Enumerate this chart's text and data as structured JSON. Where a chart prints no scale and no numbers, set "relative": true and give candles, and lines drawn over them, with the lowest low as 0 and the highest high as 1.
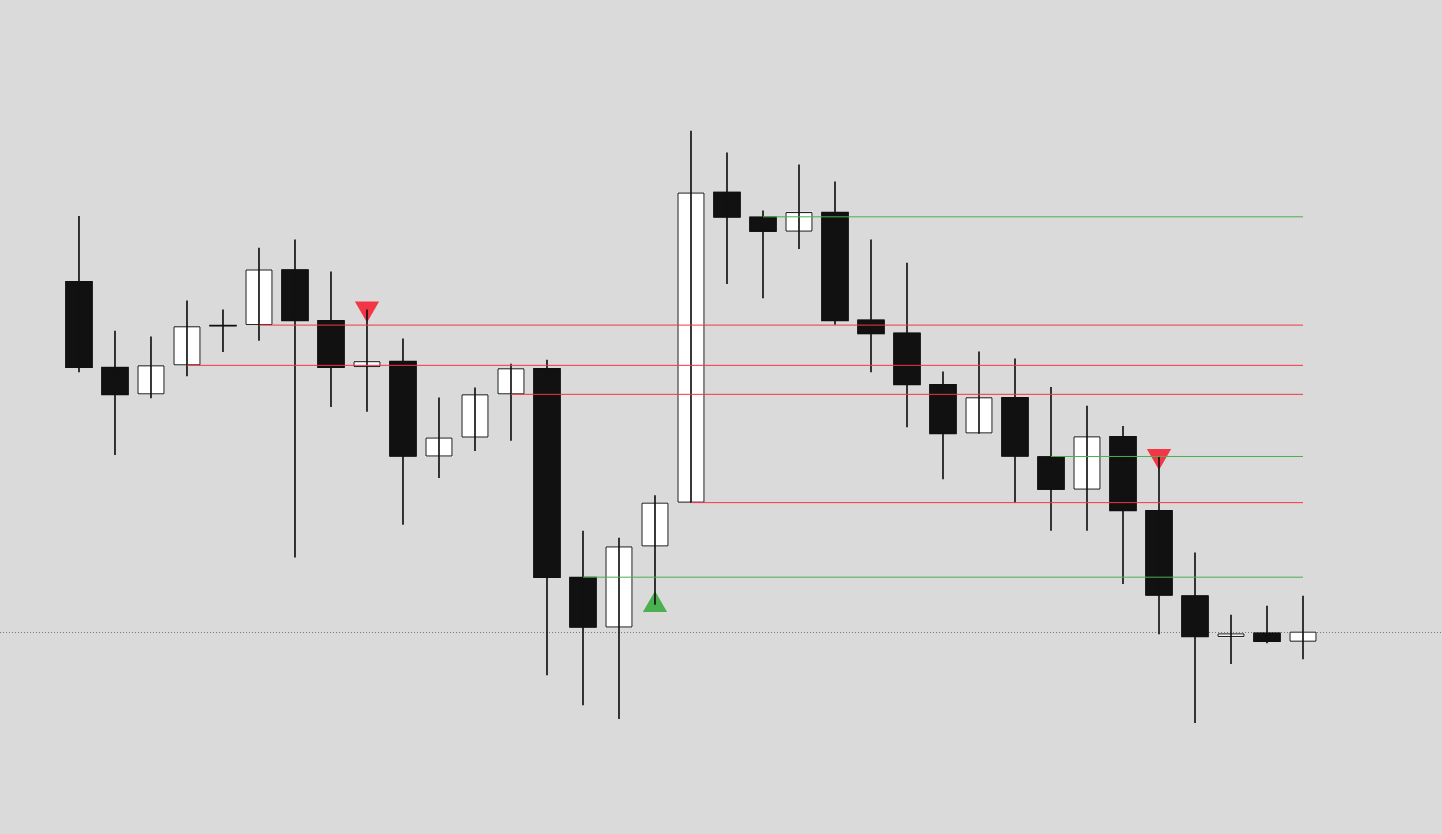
{
  "chart_data": {
    "type": "candlestick",
    "relative": true,
    "tick_labels": false,
    "color": "#111111",
    "categories": [
      null,
      null,
      null,
      null,
      null,
      null,
      null,
      null,
      null,
      null,
      null,
      null,
      null,
      null,
      null,
      null,
      null,
      null,
      null,
      null,
      null,
      null,
      null,
      null,
      null,
      null,
      null,
      null,
      null,
      null,
      null,
      null,
      null,
      null,
      null
    ],
    "ohlc": [
      [
        0.746,
        0.856,
        0.593,
        0.6
      ],
      [
        0.601,
        0.662,
        0.453,
        0.554
      ],
      [
        0.555,
        0.652,
        0.549,
        0.604
      ],
      [
        0.604,
        0.713,
        0.586,
        0.67
      ],
      [
        0.672,
        0.698,
        0.627,
        0.672
      ],
      [
        0.672,
        0.802,
        0.646,
        0.766
      ],
      [
        0.766,
        0.816,
        0.28,
        0.679
      ],
      [
        0.68,
        0.762,
        0.534,
        0.6
      ],
      [
        0.601,
        0.698,
        0.526,
        0.611
      ],
      [
        0.611,
        0.649,
        0.335,
        0.45
      ],
      [
        0.45,
        0.549,
        0.414,
        0.482
      ],
      [
        0.482,
        0.566,
        0.46,
        0.555
      ],
      [
        0.555,
        0.606,
        0.477,
        0.599
      ],
      [
        0.599,
        0.613,
        0.081,
        0.245
      ],
      [
        0.246,
        0.324,
        0.03,
        0.161
      ],
      [
        0.161,
        0.312,
        0.007,
        0.298
      ],
      [
        0.298,
        0.384,
        0.2,
        0.372
      ],
      [
        0.372,
        1.0,
        0.372,
        0.896
      ],
      [
        0.897,
        0.963,
        0.742,
        0.854
      ],
      [
        0.855,
        0.865,
        0.718,
        0.83
      ],
      [
        0.83,
        0.943,
        0.801,
        0.863
      ],
      [
        0.863,
        0.914,
        0.673,
        0.679
      ],
      [
        0.681,
        0.816,
        0.593,
        0.657
      ],
      [
        0.659,
        0.777,
        0.5,
        0.571
      ],
      [
        0.572,
        0.593,
        0.412,
        0.488
      ],
      [
        0.489,
        0.627,
        0.489,
        0.55
      ],
      [
        0.55,
        0.615,
        0.372,
        0.45
      ],
      [
        0.45,
        0.567,
        0.325,
        0.394
      ],
      [
        0.394,
        0.535,
        0.325,
        0.484
      ],
      [
        0.484,
        0.501,
        0.235,
        0.358
      ],
      [
        0.359,
        0.449,
        0.15,
        0.215
      ],
      [
        0.215,
        0.287,
        0.0,
        0.145
      ],
      [
        0.145,
        0.182,
        0.1,
        0.151
      ],
      [
        0.152,
        0.197,
        0.135,
        0.137
      ],
      [
        0.137,
        0.214,
        0.108,
        0.154
      ]
    ],
    "colors": [
      "#111111",
      "#111111",
      "#ffffff",
      "#ffffff",
      "#111111",
      "#ffffff",
      "#111111",
      "#111111",
      "#ffffff",
      "#111111",
      "#ffffff",
      "#ffffff",
      "#ffffff",
      "#111111",
      "#111111",
      "#ffffff",
      "#ffffff",
      "#ffffff",
      "#111111",
      "#111111",
      "#ffffff",
      "#111111",
      "#111111",
      "#111111",
      "#111111",
      "#ffffff",
      "#111111",
      "#111111",
      "#ffffff",
      "#111111",
      "#111111",
      "#111111",
      "#ffffff",
      "#111111",
      "#ffffff"
    ],
    "series": [
      {
        "type": "line",
        "color": "#4caf50",
        "values": [
          null,
          null,
          null,
          null,
          null,
          null,
          null,
          null,
          null,
          null,
          null,
          null,
          null,
          null,
          null,
          null,
          null,
          null,
          null,
          0.855,
          0.855,
          0.855,
          0.855,
          0.855,
          0.855,
          0.855,
          0.855,
          0.855,
          0.855,
          0.855,
          0.855,
          0.855,
          0.855,
          0.855,
          0.855
        ]
      },
      {
        "type": "line",
        "color": "#f23645",
        "values": [
          null,
          null,
          null,
          null,
          null,
          0.672,
          0.672,
          0.672,
          0.672,
          0.672,
          0.672,
          0.672,
          0.672,
          0.672,
          0.672,
          0.672,
          0.672,
          0.672,
          0.672,
          0.672,
          0.672,
          0.672,
          0.672,
          0.672,
          0.672,
          0.672,
          0.672,
          0.672,
          0.672,
          0.672,
          0.672,
          0.672,
          0.672,
          0.672,
          0.672
        ]
      },
      {
        "type": "line",
        "color": "#f23645",
        "values": [
          null,
          null,
          null,
          0.604,
          0.604,
          0.604,
          0.604,
          0.604,
          0.604,
          0.604,
          0.604,
          0.604,
          0.604,
          0.604,
          0.604,
          0.604,
          0.604,
          0.604,
          0.604,
          0.604,
          0.604,
          0.604,
          0.604,
          0.604,
          0.604,
          0.604,
          0.604,
          0.604,
          0.604,
          0.604,
          0.604,
          0.604,
          0.604,
          0.604,
          0.604
        ]
      },
      {
        "type": "line",
        "color": "#f23645",
        "values": [
          null,
          null,
          null,
          null,
          null,
          null,
          null,
          null,
          null,
          null,
          null,
          null,
          0.555,
          0.555,
          0.555,
          0.555,
          0.555,
          0.555,
          0.555,
          0.555,
          0.555,
          0.555,
          0.555,
          0.555,
          0.555,
          0.555,
          0.555,
          0.555,
          0.555,
          0.555,
          0.555,
          0.555,
          0.555,
          0.555,
          0.555
        ]
      },
      {
        "type": "line",
        "color": "#4caf50",
        "values": [
          null,
          null,
          null,
          null,
          null,
          null,
          null,
          null,
          null,
          null,
          null,
          null,
          null,
          null,
          null,
          null,
          null,
          null,
          null,
          null,
          null,
          null,
          null,
          null,
          null,
          null,
          null,
          0.45,
          0.45,
          0.45,
          0.45,
          0.45,
          0.45,
          0.45,
          0.45
        ]
      },
      {
        "type": "line",
        "color": "#f23645",
        "values": [
          null,
          null,
          null,
          null,
          null,
          null,
          null,
          null,
          null,
          null,
          null,
          null,
          null,
          null,
          null,
          null,
          null,
          0.372,
          0.372,
          0.372,
          0.372,
          0.372,
          0.372,
          0.372,
          0.372,
          0.372,
          0.372,
          0.372,
          0.372,
          0.372,
          0.372,
          0.372,
          0.372,
          0.372,
          0.372
        ]
      },
      {
        "type": "line",
        "color": "#4caf50",
        "values": [
          null,
          null,
          null,
          null,
          null,
          null,
          null,
          null,
          null,
          null,
          null,
          null,
          null,
          null,
          0.246,
          0.246,
          0.246,
          0.246,
          0.246,
          0.246,
          0.246,
          0.246,
          0.246,
          0.246,
          0.246,
          0.246,
          0.246,
          0.246,
          0.246,
          0.246,
          0.246,
          0.246,
          0.246,
          0.246,
          0.246
        ]
      },
      {
        "type": "scatter",
        "color": "#f23645",
        "marker": "triangle",
        "values": [
          null,
          null,
          null,
          null,
          null,
          null,
          null,
          null,
          0.7,
          null,
          null,
          null,
          null,
          null,
          null,
          null,
          null,
          null,
          null,
          null,
          null,
          null,
          null,
          null,
          null,
          null,
          null,
          null,
          null,
          null,
          0.451,
          null,
          null,
          null,
          null
        ]
      },
      {
        "type": "scatter",
        "color": "#4caf50",
        "marker": "triangle",
        "values": [
          null,
          null,
          null,
          null,
          null,
          null,
          null,
          null,
          null,
          null,
          null,
          null,
          null,
          null,
          null,
          null,
          0.199,
          null,
          null,
          null,
          null,
          null,
          null,
          null,
          null,
          null,
          null,
          null,
          null,
          null,
          null,
          null,
          null,
          null,
          null
        ]
      }
    ],
    "ref_lines": [
      {
        "axis": "y",
        "value": 0.154,
        "color": "#787878",
        "line_style": "dotted"
      }
    ]
  }
}
